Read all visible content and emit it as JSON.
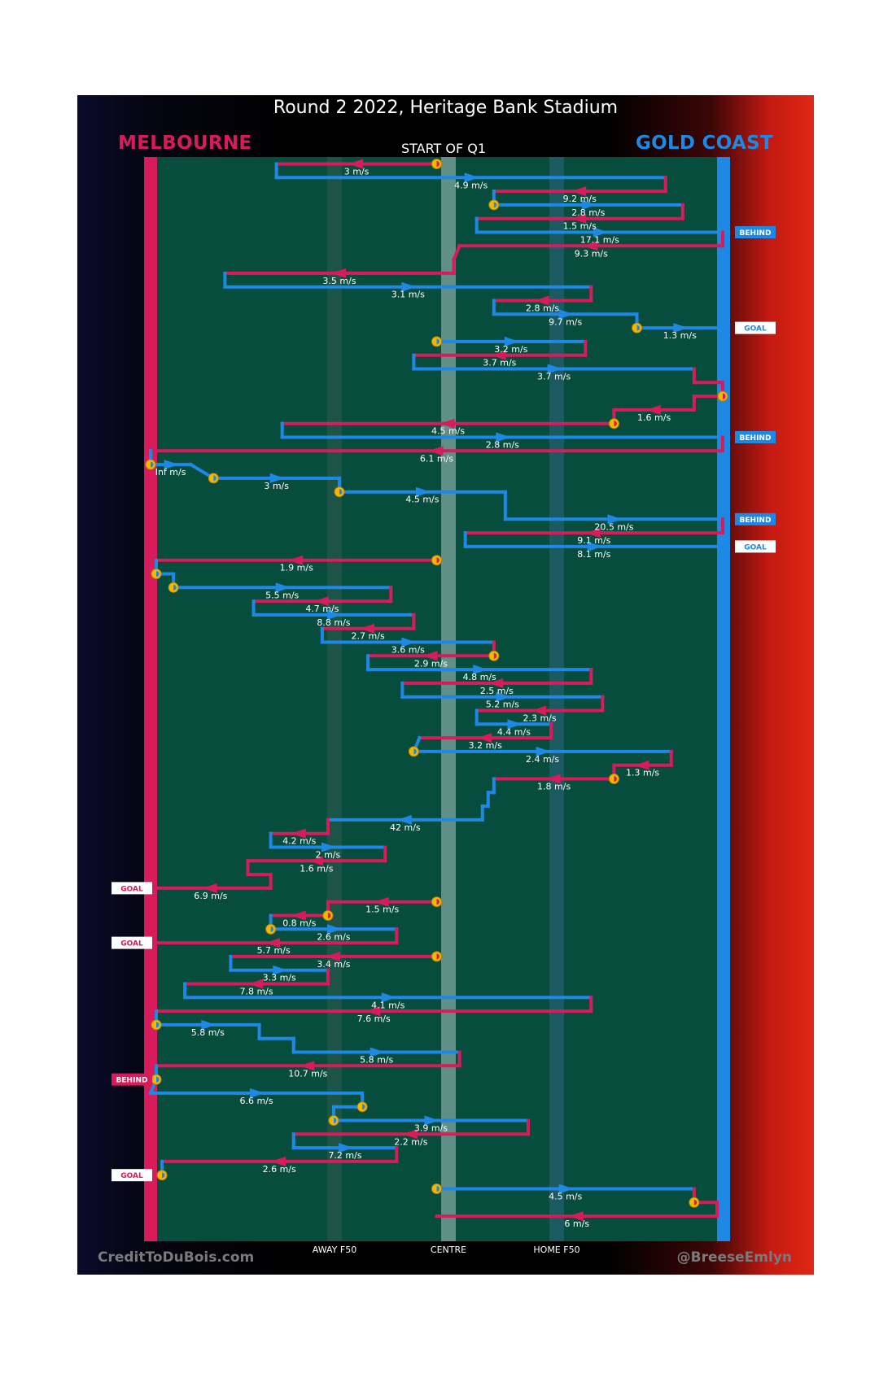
{
  "title": "Round 2 2022, Heritage Bank Stadium",
  "home_team": "MELBOURNE",
  "away_team": "GOLD COAST",
  "start_label": "START OF Q1",
  "credit_left": "CreditToDuBois.com",
  "credit_right": "@BreeseEmlyn",
  "colors": {
    "home": "#d81b5a",
    "away": "#1e88e5",
    "field": "#064d3e",
    "marker": "#f5b800"
  },
  "chart_data": {
    "type": "line",
    "x_axis": {
      "ticks": [
        {
          "label": "AWAY F50",
          "value": 0.31
        },
        {
          "label": "CENTRE",
          "value": 0.5
        },
        {
          "label": "HOME F50",
          "value": 0.69
        }
      ]
    },
    "events": [
      {
        "x": 0.5,
        "y": 1,
        "kind": "start"
      },
      {
        "x": 0.22,
        "y": 1,
        "team": "home",
        "speed": "3 m/s"
      },
      {
        "x": 0.22,
        "y": 2
      },
      {
        "x": 0.9,
        "y": 2,
        "team": "away",
        "speed": "4.9 m/s"
      },
      {
        "x": 0.9,
        "y": 3
      },
      {
        "x": 0.6,
        "y": 3,
        "team": "home",
        "speed": "9.2 m/s"
      },
      {
        "x": 0.6,
        "y": 4,
        "kind": "possession"
      },
      {
        "x": 0.93,
        "y": 4,
        "team": "away",
        "speed": "2.8 m/s"
      },
      {
        "x": 0.93,
        "y": 5
      },
      {
        "x": 0.57,
        "y": 5,
        "team": "home",
        "speed": "1.5 m/s"
      },
      {
        "x": 0.57,
        "y": 6
      },
      {
        "x": 1.0,
        "y": 6,
        "team": "away",
        "speed": "17.1 m/s",
        "outcome": "BEHIND"
      },
      {
        "x": 1.0,
        "y": 7
      },
      {
        "x": 0.54,
        "y": 7,
        "team": "home",
        "speed": "9.3 m/s"
      },
      {
        "x": 0.53,
        "y": 8
      },
      {
        "x": 0.53,
        "y": 9
      },
      {
        "x": 0.13,
        "y": 9,
        "team": "home",
        "speed": "3.5 m/s"
      },
      {
        "x": 0.13,
        "y": 10
      },
      {
        "x": 0.77,
        "y": 10,
        "team": "away",
        "speed": "3.1 m/s"
      },
      {
        "x": 0.77,
        "y": 11
      },
      {
        "x": 0.6,
        "y": 11,
        "team": "home",
        "speed": "2.8 m/s"
      },
      {
        "x": 0.6,
        "y": 12
      },
      {
        "x": 0.85,
        "y": 12,
        "team": "away",
        "speed": "9.7 m/s"
      },
      {
        "x": 0.85,
        "y": 13,
        "kind": "possession"
      },
      {
        "x": 1.0,
        "y": 13,
        "team": "away",
        "speed": "1.3 m/s",
        "outcome": "GOAL"
      },
      {
        "x": 0.5,
        "y": 14,
        "kind": "start"
      },
      {
        "x": 0.76,
        "y": 14,
        "team": "away",
        "speed": "3.2 m/s"
      },
      {
        "x": 0.76,
        "y": 15
      },
      {
        "x": 0.46,
        "y": 15,
        "team": "home",
        "speed": "3.7 m/s"
      },
      {
        "x": 0.46,
        "y": 16
      },
      {
        "x": 0.95,
        "y": 16,
        "team": "away",
        "speed": "3.7 m/s"
      },
      {
        "x": 0.95,
        "y": 17
      },
      {
        "x": 1.0,
        "y": 17
      },
      {
        "x": 1.0,
        "y": 18,
        "kind": "possession"
      },
      {
        "x": 0.95,
        "y": 18
      },
      {
        "x": 0.95,
        "y": 19
      },
      {
        "x": 0.81,
        "y": 19,
        "team": "home",
        "speed": "1.6 m/s"
      },
      {
        "x": 0.81,
        "y": 20,
        "kind": "possession"
      },
      {
        "x": 0.23,
        "y": 20,
        "team": "home",
        "speed": "4.5 m/s"
      },
      {
        "x": 0.23,
        "y": 21
      },
      {
        "x": 1.0,
        "y": 21,
        "team": "away",
        "speed": "2.8 m/s",
        "outcome": "BEHIND"
      },
      {
        "x": 1.0,
        "y": 22
      },
      {
        "x": 0.0,
        "y": 22,
        "team": "home",
        "speed": "6.1 m/s"
      },
      {
        "x": 0.0,
        "y": 23,
        "kind": "possession"
      },
      {
        "x": 0.07,
        "y": 23,
        "team": "away",
        "speed": "Inf m/s"
      },
      {
        "x": 0.11,
        "y": 24,
        "kind": "possession"
      },
      {
        "x": 0.33,
        "y": 24,
        "team": "away",
        "speed": "3 m/s"
      },
      {
        "x": 0.33,
        "y": 25,
        "kind": "possession"
      },
      {
        "x": 0.62,
        "y": 25,
        "team": "away",
        "speed": "4.5 m/s"
      },
      {
        "x": 0.62,
        "y": 26
      },
      {
        "x": 0.62,
        "y": 27
      },
      {
        "x": 1.0,
        "y": 27,
        "team": "away",
        "speed": "20.5 m/s",
        "outcome": "BEHIND"
      },
      {
        "x": 1.0,
        "y": 28
      },
      {
        "x": 0.55,
        "y": 28,
        "team": "home",
        "speed": "9.1 m/s"
      },
      {
        "x": 0.55,
        "y": 29
      },
      {
        "x": 1.0,
        "y": 29,
        "team": "away",
        "speed": "8.1 m/s",
        "outcome": "GOAL"
      },
      {
        "x": 0.5,
        "y": 30,
        "kind": "start"
      },
      {
        "x": 0.01,
        "y": 30,
        "team": "home",
        "speed": "1.9 m/s"
      },
      {
        "x": 0.01,
        "y": 31,
        "kind": "possession"
      },
      {
        "x": 0.04,
        "y": 31
      },
      {
        "x": 0.04,
        "y": 32,
        "kind": "possession"
      },
      {
        "x": 0.42,
        "y": 32,
        "team": "away",
        "speed": "5.5 m/s"
      },
      {
        "x": 0.42,
        "y": 33
      },
      {
        "x": 0.18,
        "y": 33,
        "team": "home",
        "speed": "4.7 m/s"
      },
      {
        "x": 0.18,
        "y": 34
      },
      {
        "x": 0.46,
        "y": 34,
        "team": "away",
        "speed": "8.8 m/s"
      },
      {
        "x": 0.46,
        "y": 35
      },
      {
        "x": 0.3,
        "y": 35,
        "team": "home",
        "speed": "2.7 m/s"
      },
      {
        "x": 0.3,
        "y": 36
      },
      {
        "x": 0.6,
        "y": 36,
        "team": "away",
        "speed": "3.6 m/s"
      },
      {
        "x": 0.6,
        "y": 37,
        "kind": "possession"
      },
      {
        "x": 0.38,
        "y": 37,
        "team": "home",
        "speed": "2.9 m/s"
      },
      {
        "x": 0.38,
        "y": 38
      },
      {
        "x": 0.77,
        "y": 38,
        "team": "away",
        "speed": "4.8 m/s"
      },
      {
        "x": 0.77,
        "y": 39
      },
      {
        "x": 0.44,
        "y": 39,
        "team": "home",
        "speed": "2.5 m/s"
      },
      {
        "x": 0.44,
        "y": 40
      },
      {
        "x": 0.79,
        "y": 40,
        "team": "away",
        "speed": "5.2 m/s"
      },
      {
        "x": 0.79,
        "y": 41
      },
      {
        "x": 0.57,
        "y": 41,
        "team": "home",
        "speed": "2.3 m/s"
      },
      {
        "x": 0.57,
        "y": 42
      },
      {
        "x": 0.7,
        "y": 42,
        "team": "away",
        "speed": "4.4 m/s"
      },
      {
        "x": 0.7,
        "y": 43
      },
      {
        "x": 0.47,
        "y": 43,
        "team": "home",
        "speed": "3.2 m/s"
      },
      {
        "x": 0.46,
        "y": 44,
        "kind": "possession"
      },
      {
        "x": 0.91,
        "y": 44,
        "team": "away",
        "speed": "2.4 m/s"
      },
      {
        "x": 0.91,
        "y": 45
      },
      {
        "x": 0.81,
        "y": 45,
        "team": "home",
        "speed": "1.3 m/s"
      },
      {
        "x": 0.81,
        "y": 46,
        "kind": "possession"
      },
      {
        "x": 0.6,
        "y": 46,
        "team": "home",
        "speed": "1.8 m/s"
      },
      {
        "x": 0.6,
        "y": 47
      },
      {
        "x": 0.59,
        "y": 47
      },
      {
        "x": 0.59,
        "y": 48
      },
      {
        "x": 0.58,
        "y": 48
      },
      {
        "x": 0.58,
        "y": 49
      },
      {
        "x": 0.31,
        "y": 49,
        "team": "away",
        "speed": "42 m/s"
      },
      {
        "x": 0.31,
        "y": 50
      },
      {
        "x": 0.21,
        "y": 50,
        "team": "home",
        "speed": "4.2 m/s"
      },
      {
        "x": 0.21,
        "y": 51
      },
      {
        "x": 0.41,
        "y": 51,
        "team": "away",
        "speed": "2 m/s"
      },
      {
        "x": 0.41,
        "y": 52
      },
      {
        "x": 0.17,
        "y": 52,
        "team": "home",
        "speed": "1.6 m/s"
      },
      {
        "x": 0.17,
        "y": 53
      },
      {
        "x": 0.21,
        "y": 53
      },
      {
        "x": 0.21,
        "y": 54
      },
      {
        "x": 0.0,
        "y": 54,
        "team": "home",
        "speed": "6.9 m/s",
        "outcome": "GOAL"
      },
      {
        "x": 0.5,
        "y": 55,
        "kind": "start"
      },
      {
        "x": 0.31,
        "y": 55,
        "team": "home",
        "speed": "1.5 m/s"
      },
      {
        "x": 0.31,
        "y": 56,
        "kind": "possession"
      },
      {
        "x": 0.21,
        "y": 56,
        "team": "home",
        "speed": "0.8 m/s"
      },
      {
        "x": 0.21,
        "y": 57,
        "kind": "possession"
      },
      {
        "x": 0.43,
        "y": 57,
        "team": "away",
        "speed": "2.6 m/s"
      },
      {
        "x": 0.43,
        "y": 58
      },
      {
        "x": 0.0,
        "y": 58,
        "team": "home",
        "speed": "5.7 m/s",
        "outcome": "GOAL"
      },
      {
        "x": 0.5,
        "y": 59,
        "kind": "start"
      },
      {
        "x": 0.14,
        "y": 59,
        "team": "home",
        "speed": "3.4 m/s"
      },
      {
        "x": 0.14,
        "y": 60
      },
      {
        "x": 0.31,
        "y": 60,
        "team": "away",
        "speed": "3.3 m/s"
      },
      {
        "x": 0.31,
        "y": 61
      },
      {
        "x": 0.06,
        "y": 61,
        "team": "home",
        "speed": "7.8 m/s"
      },
      {
        "x": 0.06,
        "y": 62
      },
      {
        "x": 0.77,
        "y": 62,
        "team": "away",
        "speed": "4.1 m/s"
      },
      {
        "x": 0.77,
        "y": 63
      },
      {
        "x": 0.01,
        "y": 63,
        "team": "home",
        "speed": "7.6 m/s"
      },
      {
        "x": 0.01,
        "y": 64,
        "kind": "possession"
      },
      {
        "x": 0.19,
        "y": 64,
        "team": "away",
        "speed": "5.8 m/s"
      },
      {
        "x": 0.19,
        "y": 65
      },
      {
        "x": 0.25,
        "y": 65
      },
      {
        "x": 0.25,
        "y": 66
      },
      {
        "x": 0.54,
        "y": 66,
        "team": "away",
        "speed": "5.8 m/s"
      },
      {
        "x": 0.54,
        "y": 67
      },
      {
        "x": 0.01,
        "y": 67,
        "team": "home",
        "speed": "10.7 m/s"
      },
      {
        "x": 0.01,
        "y": 68,
        "kind": "possession",
        "outcome": "BEHIND",
        "side": "home"
      },
      {
        "x": 0.0,
        "y": 69
      },
      {
        "x": 0.37,
        "y": 69,
        "team": "away",
        "speed": "6.6 m/s"
      },
      {
        "x": 0.37,
        "y": 70,
        "kind": "possession"
      },
      {
        "x": 0.32,
        "y": 70
      },
      {
        "x": 0.32,
        "y": 71,
        "kind": "possession"
      },
      {
        "x": 0.66,
        "y": 71,
        "team": "away",
        "speed": "3.9 m/s"
      },
      {
        "x": 0.66,
        "y": 72
      },
      {
        "x": 0.25,
        "y": 72,
        "team": "home",
        "speed": "2.2 m/s"
      },
      {
        "x": 0.25,
        "y": 73
      },
      {
        "x": 0.43,
        "y": 73,
        "team": "away",
        "speed": "7.2 m/s"
      },
      {
        "x": 0.43,
        "y": 74
      },
      {
        "x": 0.02,
        "y": 74,
        "team": "home",
        "speed": "2.6 m/s"
      },
      {
        "x": 0.02,
        "y": 75,
        "kind": "possession",
        "outcome": "GOAL",
        "side": "home"
      },
      {
        "x": 0.5,
        "y": 76,
        "kind": "start"
      },
      {
        "x": 0.95,
        "y": 76,
        "team": "away",
        "speed": "4.5 m/s"
      },
      {
        "x": 0.95,
        "y": 77,
        "kind": "possession"
      },
      {
        "x": 0.99,
        "y": 77
      },
      {
        "x": 0.99,
        "y": 78
      },
      {
        "x": 0.5,
        "y": 78,
        "team": "home",
        "speed": "6 m/s"
      }
    ]
  }
}
